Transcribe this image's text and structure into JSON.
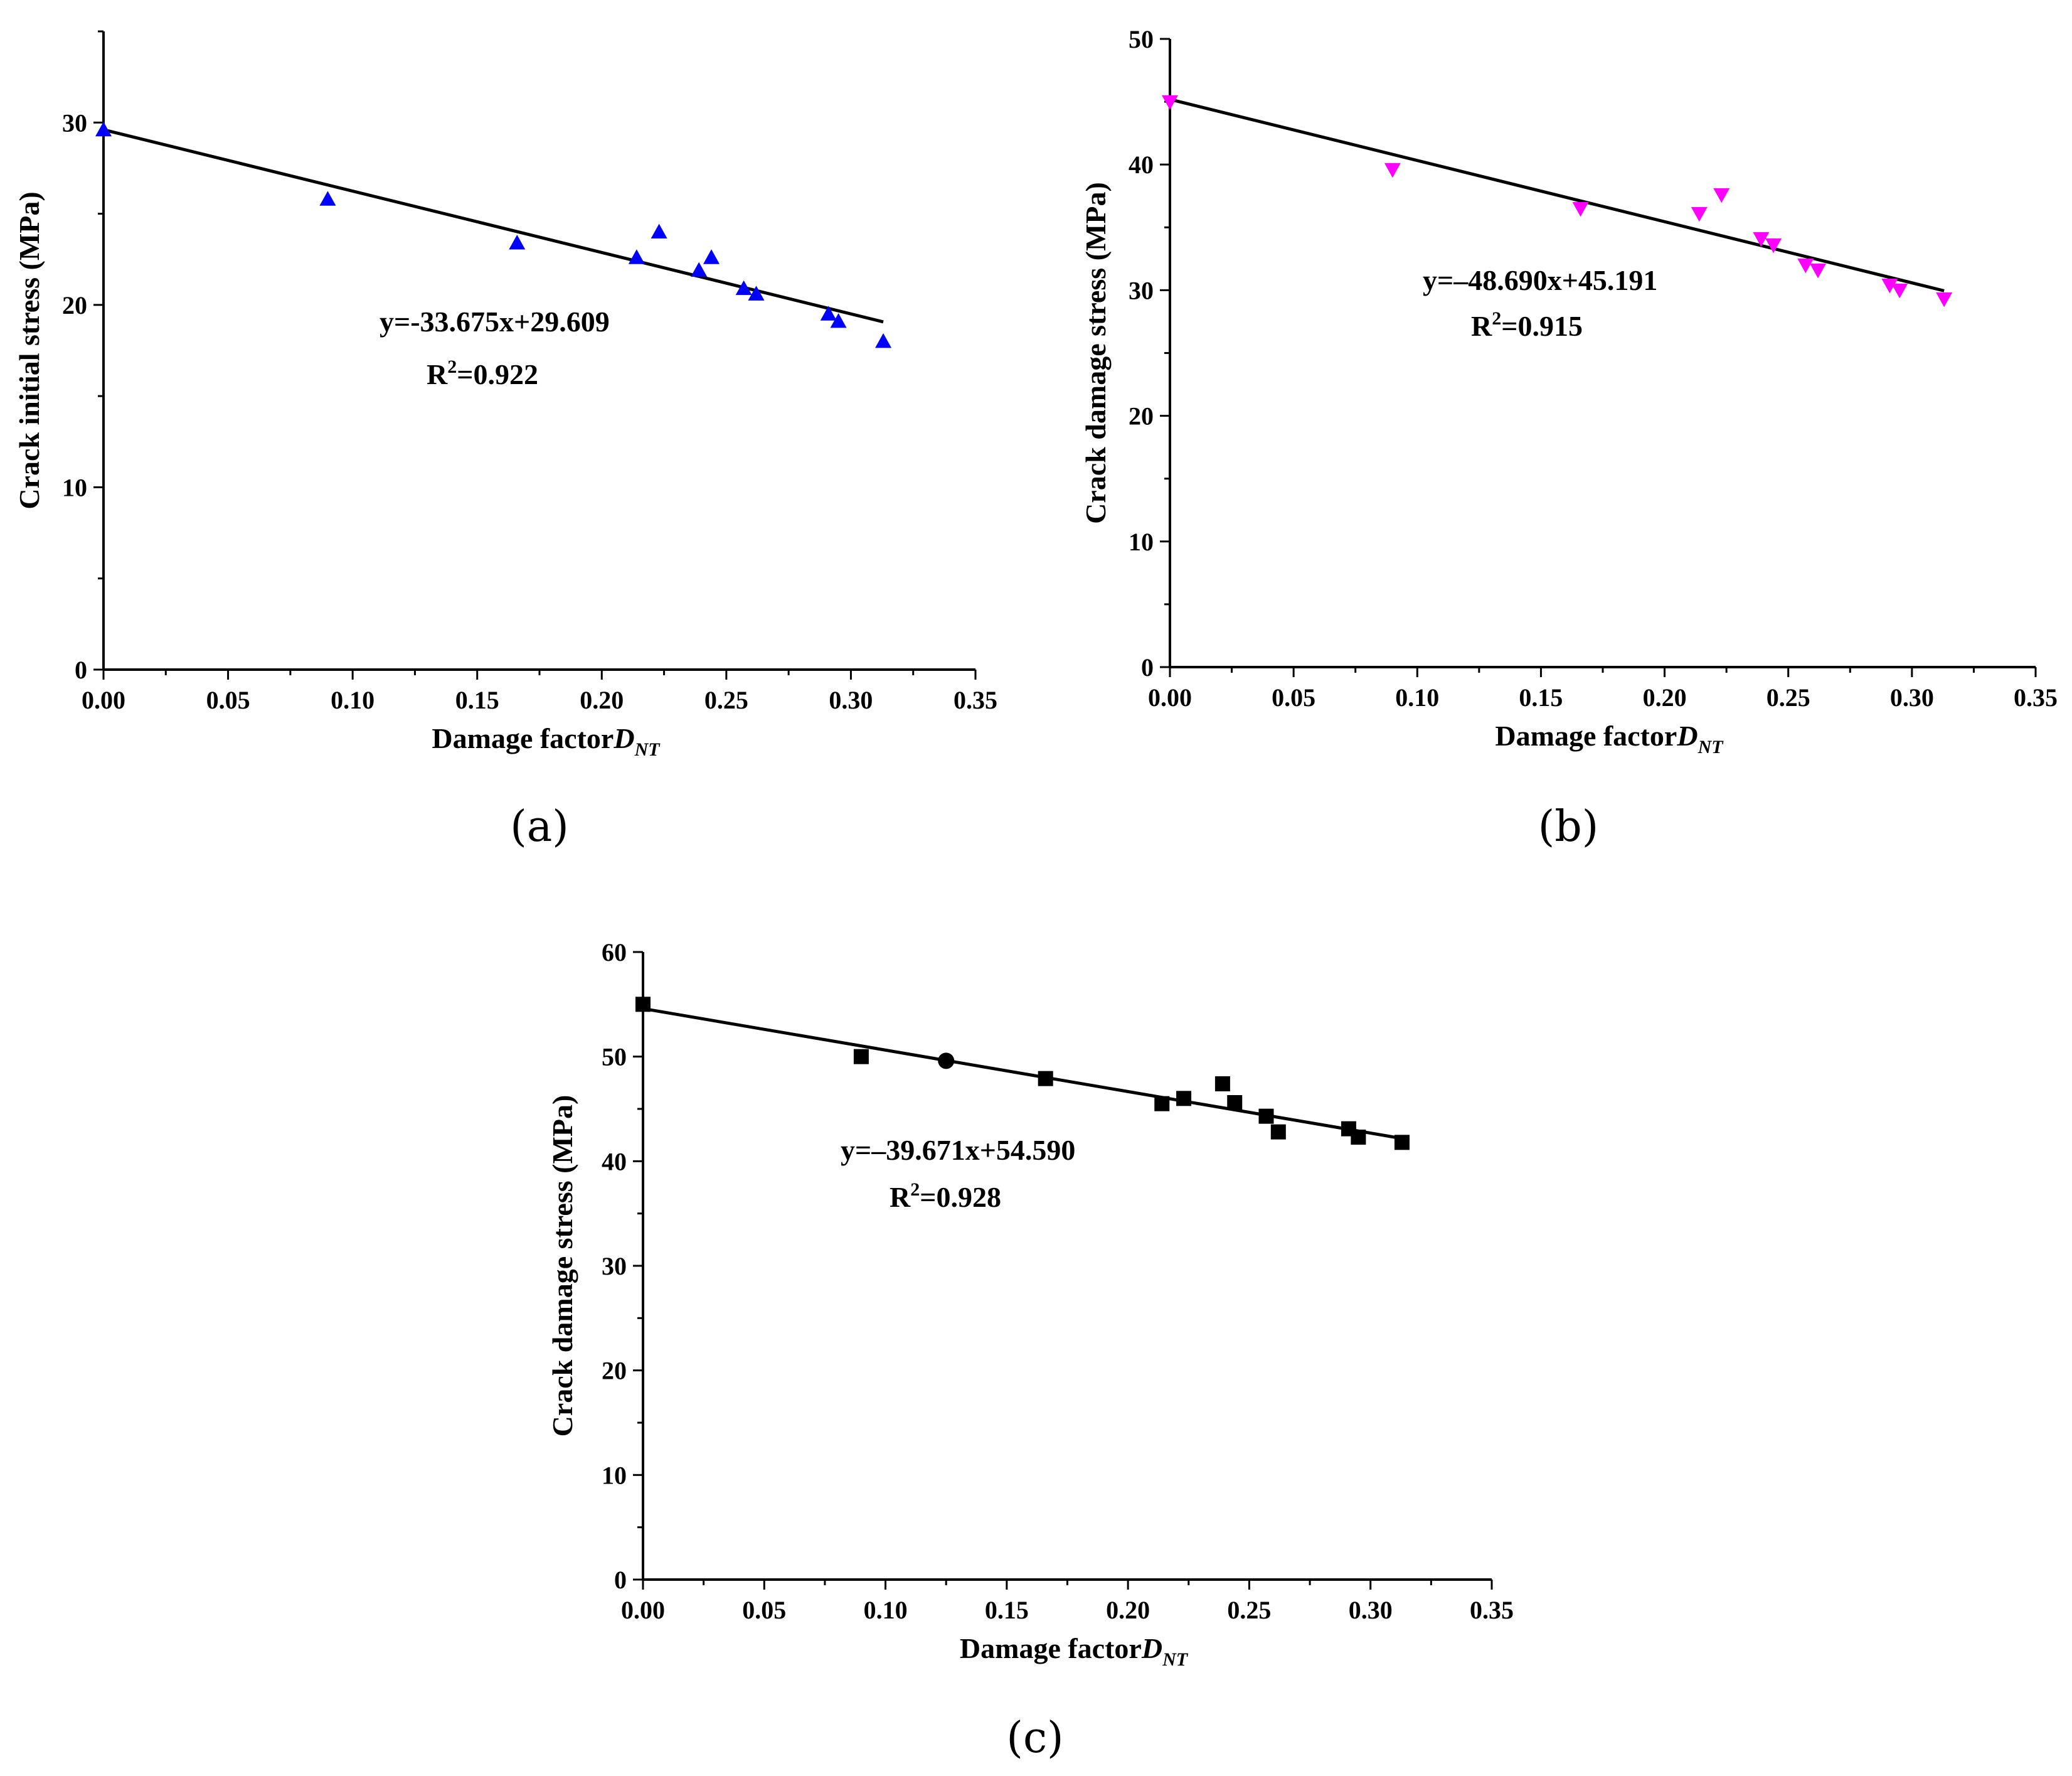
{
  "chart_data": [
    {
      "type": "scatter",
      "panel_label": "(a)",
      "xlabel": "Damage factor",
      "xlabel_symbol": "D",
      "xlabel_subscript": "NT",
      "ylabel": "Crack initial stress (MPa)",
      "xlim": [
        0,
        0.35
      ],
      "ylim": [
        0,
        35
      ],
      "xticks": [
        "0.00",
        "0.05",
        "0.10",
        "0.15",
        "0.20",
        "0.25",
        "0.30",
        "0.35"
      ],
      "yticks": [
        "0",
        "10",
        "20",
        "30"
      ],
      "marker": "triangle-up",
      "marker_color": "#0000ff",
      "x": [
        0.0,
        0.09,
        0.166,
        0.214,
        0.223,
        0.239,
        0.244,
        0.257,
        0.262,
        0.291,
        0.295,
        0.313
      ],
      "y": [
        29.6,
        25.8,
        23.4,
        22.6,
        24.0,
        21.9,
        22.6,
        20.9,
        20.6,
        19.5,
        19.1,
        18.0
      ],
      "fit": {
        "slope": -33.675,
        "intercept": 29.609,
        "x_range": [
          0,
          0.313
        ]
      },
      "equation": "y=-33.675x+29.609",
      "r2_label": "R",
      "r2_value": "=0.922"
    },
    {
      "type": "scatter",
      "panel_label": "(b)",
      "xlabel": "Damage factor",
      "xlabel_symbol": "D",
      "xlabel_subscript": "NT",
      "ylabel": "Crack damage stress (MPa)",
      "xlim": [
        0,
        0.35
      ],
      "ylim": [
        0,
        50
      ],
      "xticks": [
        "0.00",
        "0.05",
        "0.10",
        "0.15",
        "0.20",
        "0.25",
        "0.30",
        "0.35"
      ],
      "yticks": [
        "0",
        "10",
        "20",
        "30",
        "40",
        "50"
      ],
      "marker": "triangle-down",
      "marker_color": "#ff00ff",
      "x": [
        0.0,
        0.09,
        0.166,
        0.214,
        0.223,
        0.239,
        0.244,
        0.257,
        0.262,
        0.291,
        0.295,
        0.313
      ],
      "y": [
        45.0,
        39.6,
        36.5,
        36.1,
        37.6,
        34.1,
        33.6,
        32.0,
        31.6,
        30.4,
        30.0,
        29.3
      ],
      "fit": {
        "slope": -48.69,
        "intercept": 45.191,
        "x_range": [
          0,
          0.313
        ]
      },
      "equation": "y=–48.690x+45.191",
      "r2_label": "R",
      "r2_value": "=0.915"
    },
    {
      "type": "scatter",
      "panel_label": "(c)",
      "xlabel": "Damage factor",
      "xlabel_symbol": "D",
      "xlabel_subscript": "NT",
      "ylabel": "Crack damage stress (MPa)",
      "xlim": [
        0,
        0.35
      ],
      "ylim": [
        0,
        60
      ],
      "xticks": [
        "0.00",
        "0.05",
        "0.10",
        "0.15",
        "0.20",
        "0.25",
        "0.30",
        "0.35"
      ],
      "yticks": [
        "0",
        "10",
        "20",
        "30",
        "40",
        "50",
        "60"
      ],
      "marker": "square",
      "marker_color": "#000000",
      "x": [
        0.0,
        0.09,
        0.125,
        0.166,
        0.214,
        0.223,
        0.239,
        0.244,
        0.257,
        0.262,
        0.291,
        0.295,
        0.313
      ],
      "y": [
        55.0,
        50.0,
        49.6,
        47.9,
        45.5,
        46.0,
        47.4,
        45.6,
        44.3,
        42.8,
        43.1,
        42.3,
        41.8
      ],
      "special_circle_index": 2,
      "fit": {
        "slope": -39.671,
        "intercept": 54.59,
        "x_range": [
          0,
          0.313
        ]
      },
      "equation": "y=–39.671x+54.590",
      "r2_label": "R",
      "r2_value": "=0.928"
    }
  ]
}
